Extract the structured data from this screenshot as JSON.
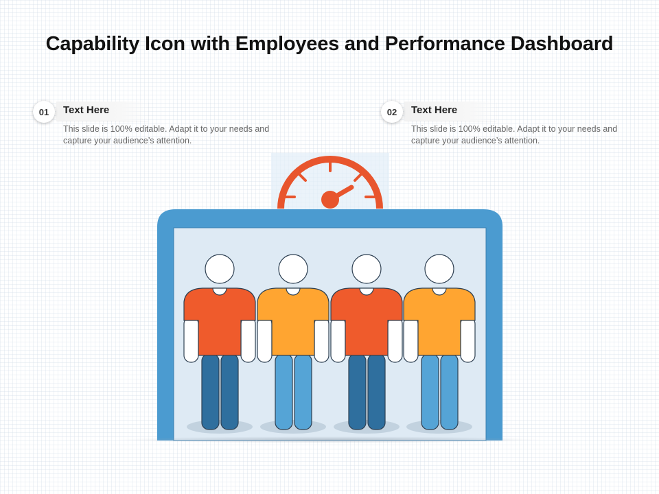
{
  "title": "Capability Icon with Employees and Performance Dashboard",
  "points": [
    {
      "number": "01",
      "heading": "Text Here",
      "text": "This slide is 100% editable. Adapt it to your needs and capture your audience’s attention."
    },
    {
      "number": "02",
      "heading": "Text Here",
      "text": "This slide is 100% editable. Adapt it to your needs and capture your audience’s attention."
    }
  ],
  "colors": {
    "frame_blue": "#4b9bd0",
    "screen_bg": "#deeaf4",
    "gauge_orange": "#e8552d",
    "shirt_red": "#ef5b2c",
    "shirt_orange": "#ffa531",
    "pants_dark": "#2f6f9e",
    "pants_light": "#55a4d6"
  },
  "icons": [
    "speedometer-icon",
    "monitor-icon",
    "person-icon"
  ]
}
